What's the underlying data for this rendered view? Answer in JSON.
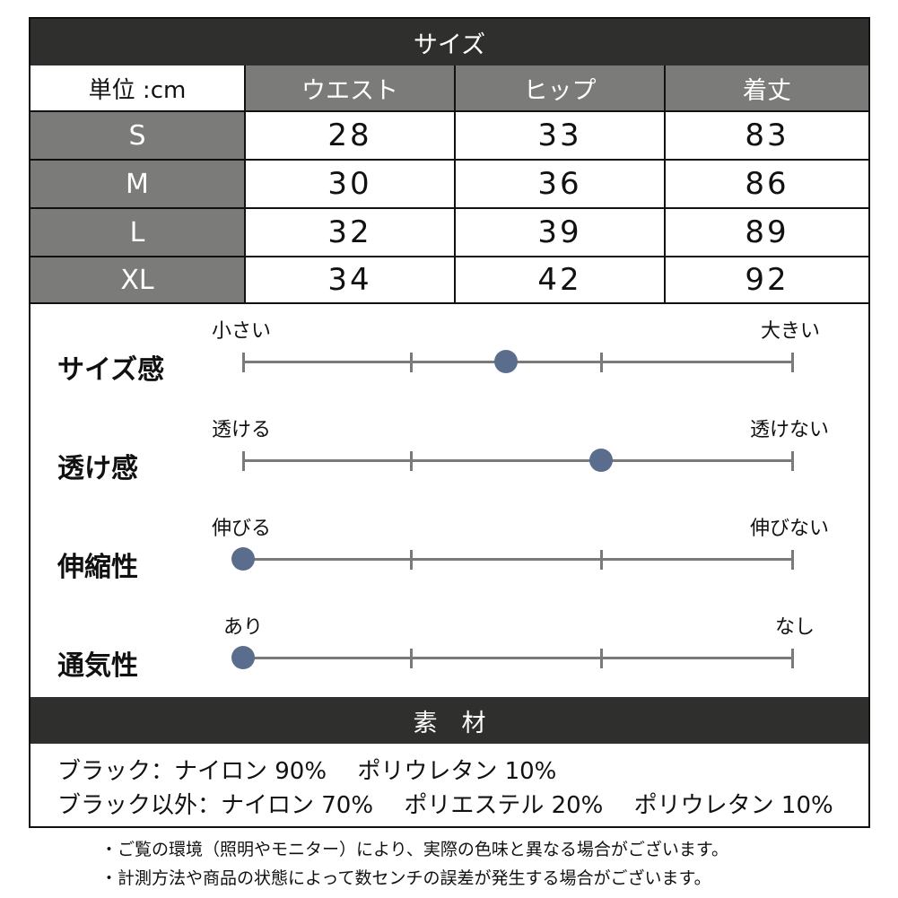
{
  "size_table": {
    "title": "サイズ",
    "unit_label": "単位 :cm",
    "columns": [
      "ウエスト",
      "ヒップ",
      "着丈"
    ],
    "rows": [
      {
        "size": "S",
        "values": [
          "28",
          "33",
          "83"
        ]
      },
      {
        "size": "M",
        "values": [
          "30",
          "36",
          "86"
        ]
      },
      {
        "size": "L",
        "values": [
          "32",
          "39",
          "89"
        ]
      },
      {
        "size": "XL",
        "values": [
          "34",
          "42",
          "92"
        ]
      }
    ]
  },
  "scales": [
    {
      "label": "サイズ感",
      "left": "小さい",
      "right": "大きい",
      "position": 0.5
    },
    {
      "label": "透け感",
      "left": "透ける",
      "right": "透けない",
      "position": 0.667
    },
    {
      "label": "伸縮性",
      "left": "伸びる",
      "right": "伸びない",
      "position": 0
    },
    {
      "label": "通気性",
      "left": "あり",
      "right": "なし",
      "position": 0
    }
  ],
  "material": {
    "title": "素　材",
    "lines": [
      "ブラック：ナイロン 90%　 ポリウレタン 10%",
      "ブラック以外：ナイロン 70%　 ポリエステル 20%　 ポリウレタン 10%"
    ]
  },
  "notes": [
    "・ご覧の環境（照明やモニター）により、実際の色味と異なる場合がございます。",
    "・計測方法や商品の状態によって数センチの誤差が発生する場合がございます。"
  ],
  "colors": {
    "dark_bar": "#2f302e",
    "gray_cell": "#7b7b7a",
    "dot": "#5b6d8c",
    "line": "#7a7a7a"
  }
}
